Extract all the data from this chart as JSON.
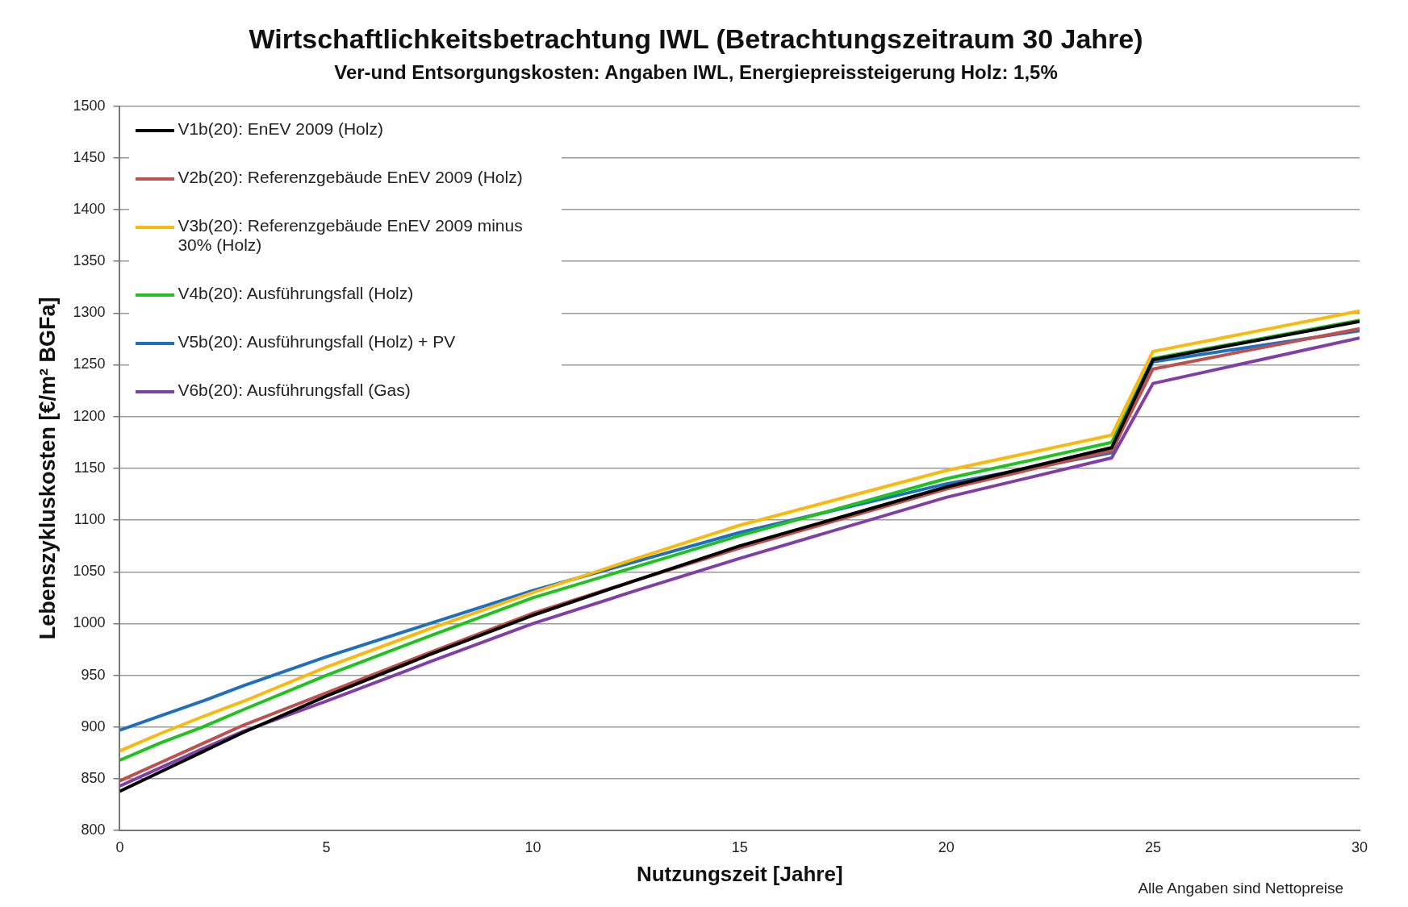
{
  "chart_data": {
    "type": "line",
    "title": "Wirtschaftlichkeitsbetrachtung IWL (Betrachtungszeitraum 30 Jahre)",
    "subtitle": "Ver-und Entsorgungskosten: Angaben IWL, Energiepreissteigerung Holz: 1,5%",
    "xlabel": "Nutzungszeit [Jahre]",
    "ylabel": "Lebenszykluskosten [€/m² BGFa]",
    "annotations": [
      "Alle Angaben sind Nettopreise"
    ],
    "x": [
      0,
      1,
      2,
      3,
      5,
      7.5,
      10,
      12.5,
      15,
      20,
      24,
      25,
      30
    ],
    "series": [
      {
        "name": "V1b(20): EnEV 2009 (Holz)",
        "color": "#000000",
        "values": [
          838,
          857,
          876,
          895,
          930,
          970,
          1008,
          1042,
          1075,
          1132,
          1170,
          1255,
          1292
        ]
      },
      {
        "name": "V2b(20): Referenzgebäude EnEV 2009 (Holz)",
        "color": "#c0504d",
        "values": [
          848,
          866,
          884,
          902,
          933,
          972,
          1010,
          1042,
          1073,
          1130,
          1167,
          1246,
          1285
        ]
      },
      {
        "name": "V3b(20): Referenzgebäude EnEV 2009 minus 30% (Holz)",
        "color": "#f9b90f",
        "values": [
          877,
          894,
          910,
          925,
          958,
          995,
          1030,
          1063,
          1095,
          1148,
          1182,
          1263,
          1302
        ]
      },
      {
        "name": "V4b(20): Ausführungsfall (Holz)",
        "color": "#1fc21f",
        "values": [
          868,
          885,
          900,
          917,
          950,
          988,
          1025,
          1055,
          1085,
          1140,
          1175,
          1256,
          1293
        ]
      },
      {
        "name": "V5b(20): Ausführungsfall (Holz) + PV",
        "color": "#1f6fbf",
        "values": [
          897,
          911,
          925,
          940,
          968,
          1000,
          1032,
          1060,
          1088,
          1135,
          1165,
          1253,
          1283
        ]
      },
      {
        "name": "V6b(20): Ausführungsfall (Gas)",
        "color": "#7f3fa6",
        "values": [
          843,
          861,
          879,
          896,
          925,
          963,
          1000,
          1032,
          1063,
          1122,
          1160,
          1232,
          1276
        ]
      }
    ],
    "xlim": [
      0,
      30
    ],
    "xticks": [
      0,
      5,
      10,
      15,
      20,
      25,
      30
    ],
    "ylim": [
      800,
      1500
    ],
    "yticks": [
      800,
      850,
      900,
      950,
      1000,
      1050,
      1100,
      1150,
      1200,
      1250,
      1300,
      1350,
      1400,
      1450,
      1500
    ],
    "grid": "y",
    "legend": "top left",
    "marker": "none",
    "line_style": "solid"
  }
}
